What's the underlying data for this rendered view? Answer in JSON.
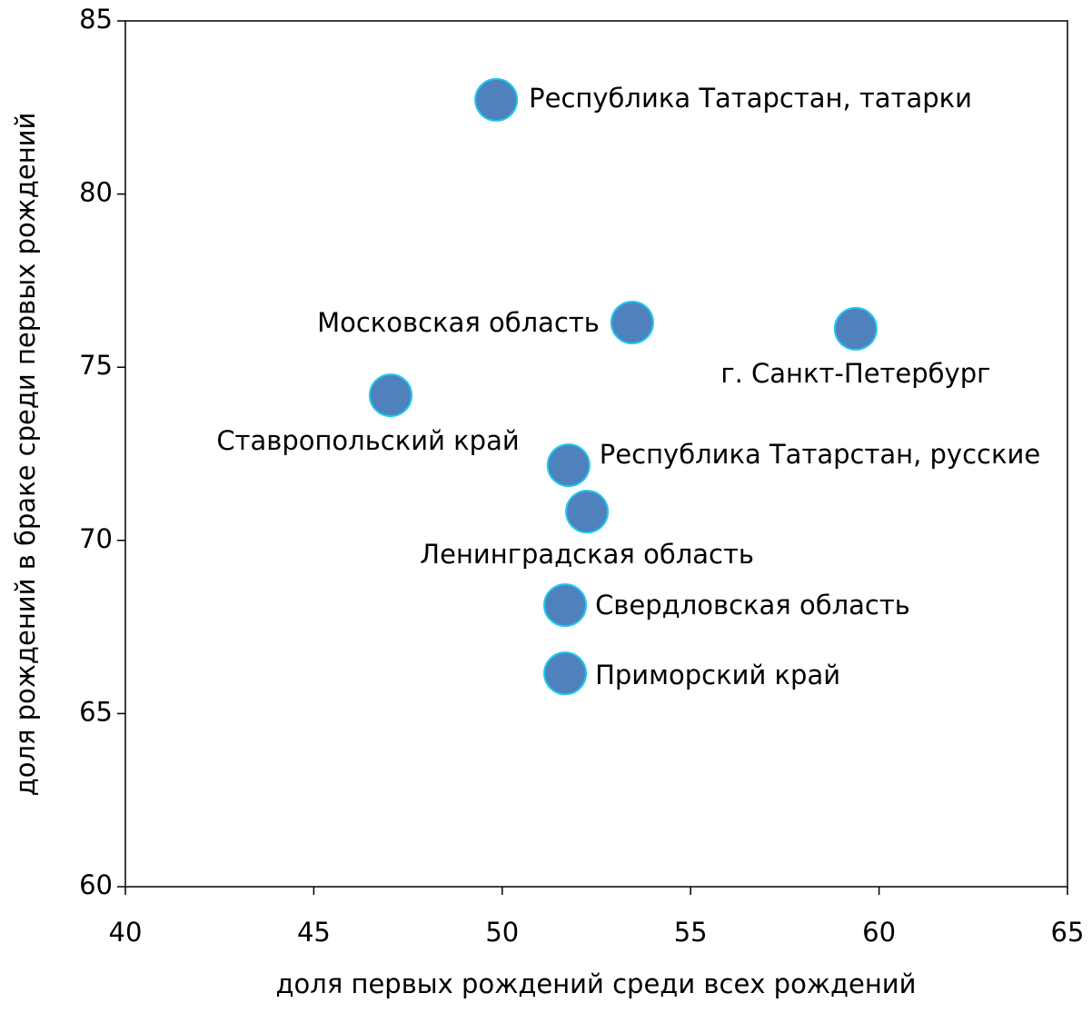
{
  "chart_data": {
    "type": "scatter",
    "xlabel": "доля первых рождений среди всех рождений",
    "ylabel": "доля рождений в браке среди первых рождений",
    "labels": [
      "Республика Татарстан, татарки",
      "Московская область",
      "г. Санкт-Петербург",
      "Ставропольский край",
      "Республика Татарстан, русские",
      "Ленинградская область",
      "Свердловская область",
      "Приморский край"
    ],
    "x": [
      49.84,
      53.45,
      59.38,
      47.04,
      51.76,
      52.25,
      51.67,
      51.67
    ],
    "values": [
      82.72,
      76.29,
      76.11,
      74.19,
      72.17,
      70.83,
      68.13,
      66.16
    ],
    "color": "#4f81bd",
    "edge_color": "#1ec8f0",
    "xlim": [
      40,
      65
    ],
    "xticks": [
      40,
      45,
      50,
      55,
      60,
      65
    ],
    "ylim": [
      60,
      85
    ],
    "yticks": [
      60,
      65,
      70,
      75,
      80,
      85
    ]
  }
}
